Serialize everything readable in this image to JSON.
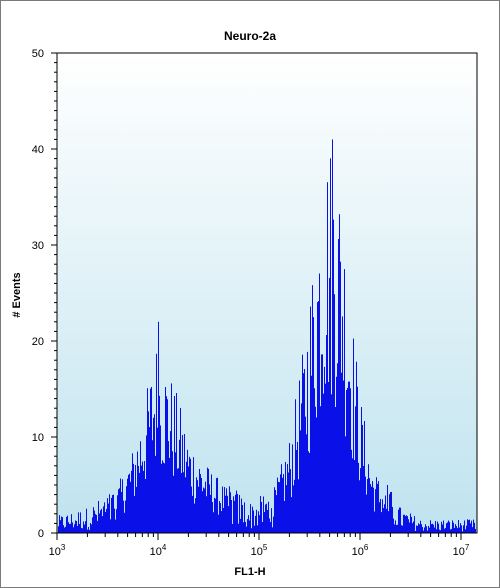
{
  "chart_data": {
    "type": "histogram",
    "title": "Neuro-2a",
    "xlabel": "FL1-H",
    "ylabel": "# Events",
    "x_scale": "log",
    "xlim": [
      1000,
      10000000
    ],
    "ylim": [
      0,
      50
    ],
    "y_ticks": [
      0,
      10,
      20,
      30,
      40,
      50
    ],
    "x_ticks": [
      {
        "value": 1000,
        "base": "10",
        "exp": "3"
      },
      {
        "value": 10000,
        "base": "10",
        "exp": "4"
      },
      {
        "value": 100000,
        "base": "10",
        "exp": "5"
      },
      {
        "value": 1000000,
        "base": "10",
        "exp": "6"
      },
      {
        "value": 10000000,
        "base": "10",
        "exp": "7"
      }
    ],
    "grid": false,
    "colors": {
      "bars": "#0a10e8",
      "plot_top": "#ffffff",
      "plot_bottom": "#bfe3ef",
      "axis": "#000000"
    },
    "series": [
      {
        "peaks": [
          {
            "x": 10000,
            "height": 22
          },
          {
            "x": 525000,
            "height": 41
          }
        ],
        "envelope": [
          {
            "x": 1000,
            "y": 1
          },
          {
            "x": 2000,
            "y": 1.5
          },
          {
            "x": 3500,
            "y": 2.5
          },
          {
            "x": 5500,
            "y": 6
          },
          {
            "x": 7500,
            "y": 10
          },
          {
            "x": 9500,
            "y": 14
          },
          {
            "x": 11000,
            "y": 13
          },
          {
            "x": 14000,
            "y": 11
          },
          {
            "x": 20000,
            "y": 7
          },
          {
            "x": 30000,
            "y": 5
          },
          {
            "x": 50000,
            "y": 3
          },
          {
            "x": 80000,
            "y": 1.8
          },
          {
            "x": 130000,
            "y": 2.5
          },
          {
            "x": 200000,
            "y": 7
          },
          {
            "x": 280000,
            "y": 14
          },
          {
            "x": 360000,
            "y": 22
          },
          {
            "x": 450000,
            "y": 28
          },
          {
            "x": 550000,
            "y": 29
          },
          {
            "x": 650000,
            "y": 25
          },
          {
            "x": 800000,
            "y": 17
          },
          {
            "x": 1000000,
            "y": 10
          },
          {
            "x": 1300000,
            "y": 5
          },
          {
            "x": 1800000,
            "y": 3
          },
          {
            "x": 2500000,
            "y": 1.5
          },
          {
            "x": 4000000,
            "y": 0.8
          },
          {
            "x": 16000000,
            "y": 0.8
          }
        ]
      }
    ]
  }
}
